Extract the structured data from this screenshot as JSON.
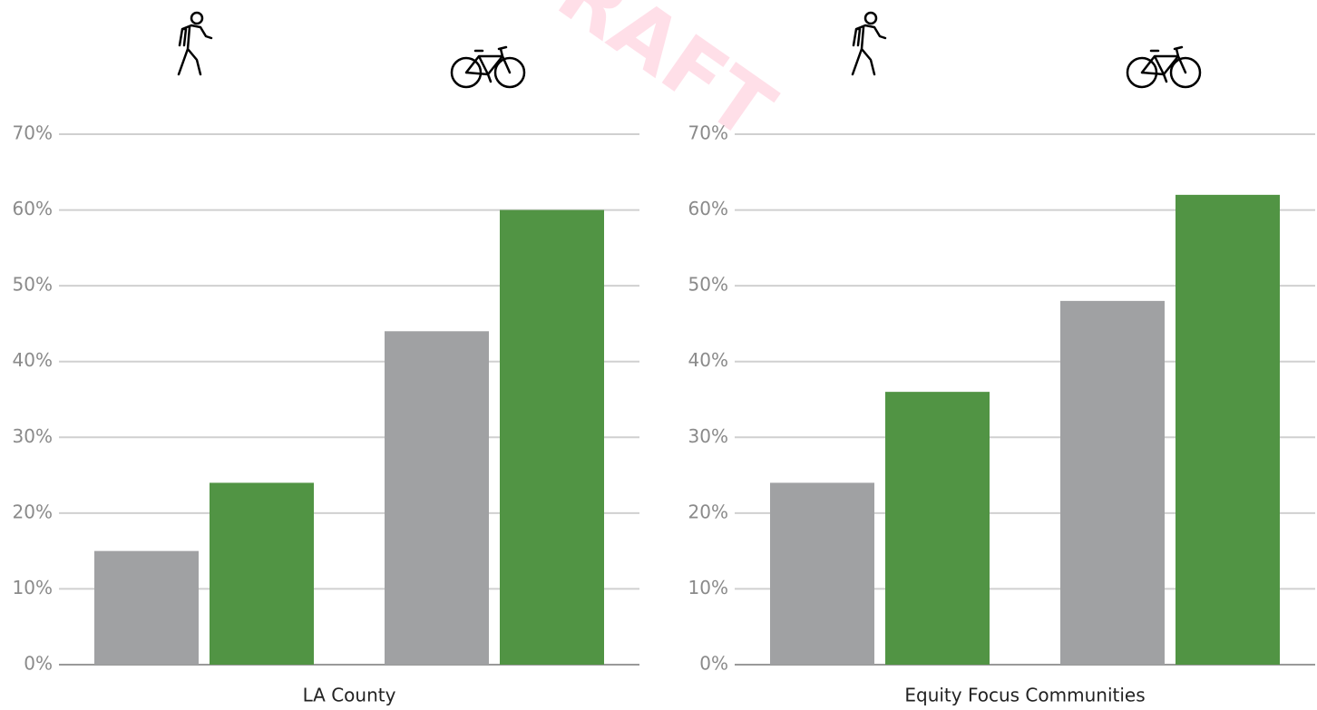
{
  "chart_data": [
    {
      "type": "bar",
      "xlabel": "LA County",
      "categories": [
        null,
        null
      ],
      "series": [
        {
          "color": "#a0a1a3",
          "values": [
            15,
            44
          ]
        },
        {
          "color": "#519444",
          "values": [
            24,
            60
          ]
        }
      ],
      "ylim": [
        0,
        70
      ],
      "yticks": [
        {
          "value": 0,
          "label": "0%"
        },
        {
          "value": 10,
          "label": "10%"
        },
        {
          "value": 20,
          "label": "20%"
        },
        {
          "value": 30,
          "label": "30%"
        },
        {
          "value": 40,
          "label": "40%"
        },
        {
          "value": 50,
          "label": "50%"
        },
        {
          "value": 60,
          "label": "60%"
        },
        {
          "value": 70,
          "label": "70%"
        }
      ],
      "grid": true
    },
    {
      "type": "bar",
      "xlabel": "Equity Focus Communities",
      "categories": [
        null,
        null
      ],
      "series": [
        {
          "color": "#a0a1a3",
          "values": [
            24,
            48
          ]
        },
        {
          "color": "#519444",
          "values": [
            36,
            62
          ]
        }
      ],
      "ylim": [
        0,
        70
      ],
      "yticks": [
        {
          "value": 0,
          "label": "0%"
        },
        {
          "value": 10,
          "label": "10%"
        },
        {
          "value": 20,
          "label": "20%"
        },
        {
          "value": 30,
          "label": "30%"
        },
        {
          "value": 40,
          "label": "40%"
        },
        {
          "value": 50,
          "label": "50%"
        },
        {
          "value": 60,
          "label": "60%"
        },
        {
          "value": 70,
          "label": "70%"
        }
      ],
      "grid": true
    }
  ],
  "watermark": "DRAFT"
}
